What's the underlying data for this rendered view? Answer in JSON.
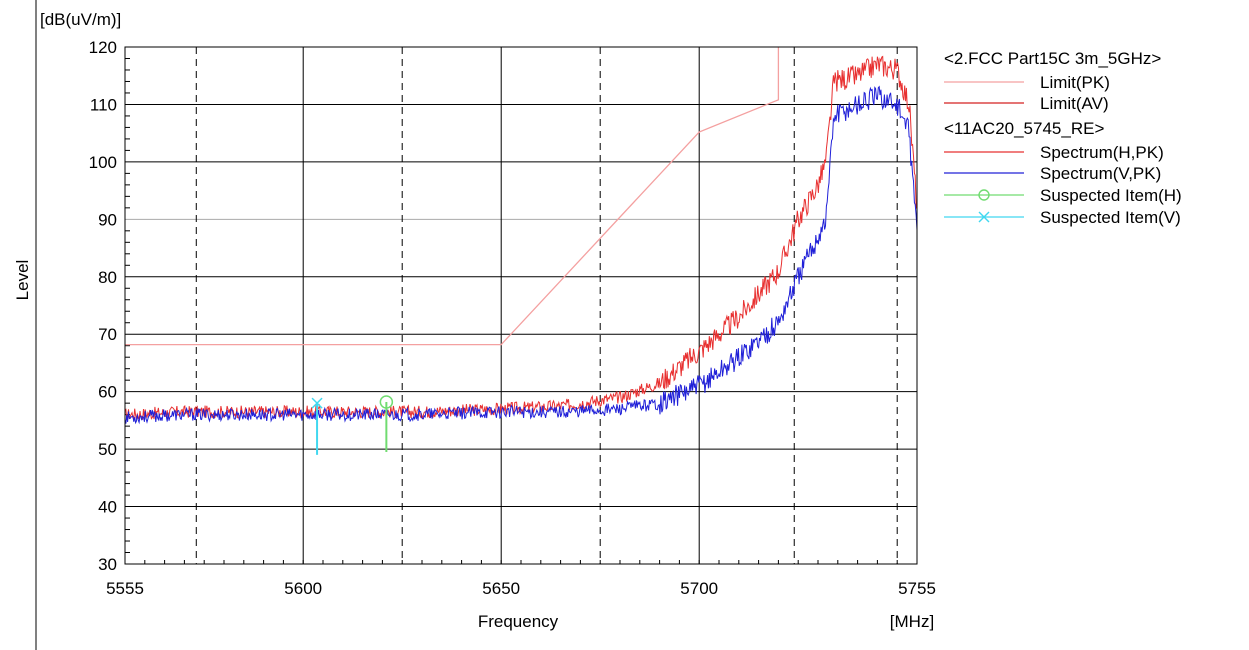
{
  "chart_data": {
    "type": "line",
    "yunit": "[dB(uV/m)]",
    "xunit": "[MHz]",
    "xlabel": "Frequency",
    "ylabel": "Level",
    "xlim": [
      5555,
      5755
    ],
    "ylim": [
      30,
      120
    ],
    "xticks": [
      5555,
      5600,
      5650,
      5700,
      5755
    ],
    "yticks": [
      30,
      40,
      50,
      60,
      70,
      80,
      90,
      100,
      110,
      120
    ],
    "dashed_x": [
      5573,
      5625,
      5675,
      5724,
      5750
    ],
    "grid": true,
    "legend_placement": "top-right",
    "legend": {
      "group1": "<2.FCC Part15C 3m_5GHz>",
      "group2": "<11AC20_5745_RE>",
      "entries": [
        {
          "label": "Limit(PK)",
          "color": "#f4a0a0",
          "marker": "line"
        },
        {
          "label": "Limit(AV)",
          "color": "#d42020",
          "marker": "line"
        },
        {
          "label": "Spectrum(H,PK)",
          "color": "#e83030",
          "marker": "line"
        },
        {
          "label": "Spectrum(V,PK)",
          "color": "#2020d8",
          "marker": "line"
        },
        {
          "label": "Suspected Item(H)",
          "color": "#70dc70",
          "marker": "circle"
        },
        {
          "label": "Suspected Item(V)",
          "color": "#40d8f0",
          "marker": "cross"
        }
      ]
    },
    "series": [
      {
        "name": "Limit(PK)",
        "color": "#f4a0a0",
        "x": [
          5555,
          5650,
          5700,
          5720,
          5720
        ],
        "y": [
          68.2,
          68.2,
          105.2,
          110.8,
          120
        ]
      },
      {
        "name": "Spectrum(H,PK)",
        "color": "#e83030",
        "x": [
          5555,
          5570,
          5590,
          5610,
          5630,
          5650,
          5665,
          5680,
          5690,
          5700,
          5710,
          5720,
          5725,
          5730,
          5732,
          5734,
          5740,
          5745,
          5750,
          5753,
          5755
        ],
        "y": [
          56,
          56.5,
          56.5,
          56.5,
          56.5,
          57,
          57.5,
          59,
          61.5,
          67,
          73,
          81,
          90,
          96,
          100,
          114,
          115,
          117,
          116,
          110,
          92
        ]
      },
      {
        "name": "Spectrum(V,PK)",
        "color": "#2020d8",
        "x": [
          5555,
          5570,
          5590,
          5610,
          5630,
          5650,
          5665,
          5680,
          5690,
          5700,
          5710,
          5720,
          5725,
          5730,
          5732,
          5734,
          5740,
          5745,
          5750,
          5753,
          5755
        ],
        "y": [
          55.5,
          56,
          56,
          56,
          56,
          56.5,
          56.5,
          57,
          58,
          61,
          66,
          72,
          80,
          87,
          90,
          108,
          110,
          111.5,
          110,
          105,
          88
        ]
      },
      {
        "name": "Suspected Item(H)",
        "color": "#70dc70",
        "x": [
          5621
        ],
        "y": [
          58.2
        ],
        "bottom": 49.5
      },
      {
        "name": "Suspected Item(V)",
        "color": "#40d8f0",
        "x": [
          5603.5
        ],
        "y": [
          58
        ],
        "bottom": 49
      }
    ]
  }
}
